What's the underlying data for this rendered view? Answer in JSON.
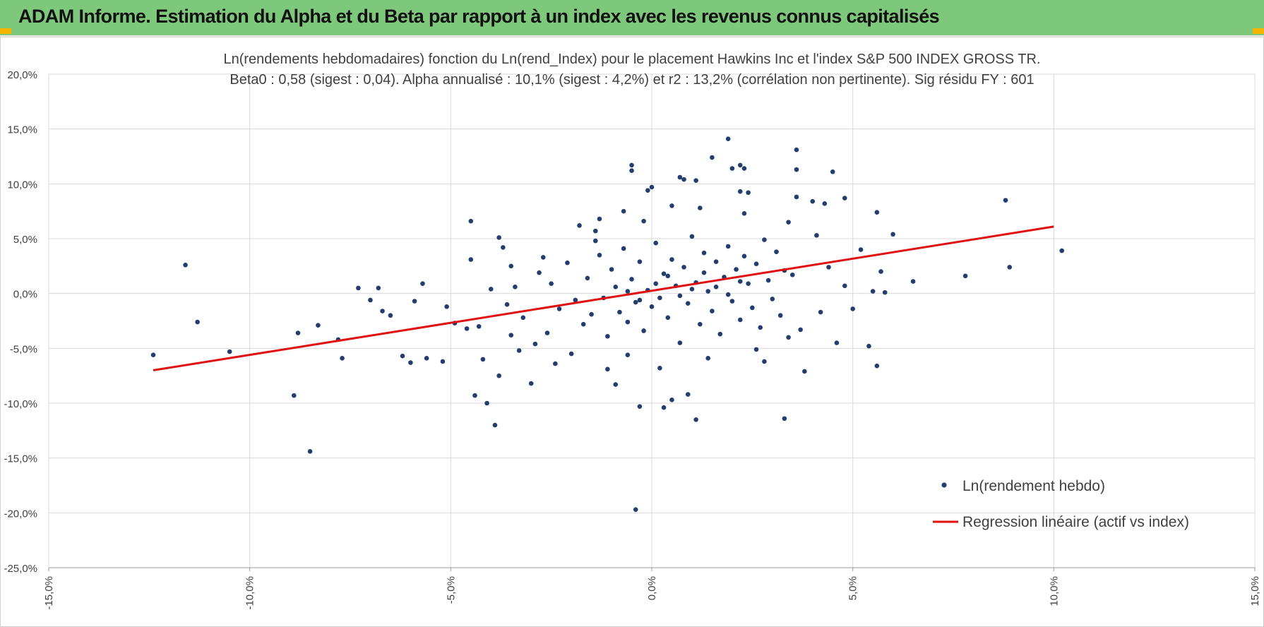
{
  "banner": {
    "title": "ADAM Informe. Estimation du Alpha et du Beta par rapport à un index avec les revenus connus capitalisés"
  },
  "colors": {
    "banner_bg": "#7ec87c",
    "points": "#233e6e",
    "regression": "#e01010",
    "grid": "#d9d9d9",
    "text": "#404040"
  },
  "chart_data": {
    "type": "scatter",
    "title": "Ln(rendements hebdomadaires) fonction du Ln(rend_Index) pour le placement Hawkins Inc et l'index S&P 500 INDEX GROSS TR.",
    "subtitle": "Beta0 : 0,58 (sigest : 0,04). Alpha annualisé : 10,1% (sigest : 4,2%) et r2 : 13,2% (corrélation non pertinente). Sig résidu FY : 601",
    "xlabel": "",
    "ylabel": "",
    "xlim": [
      -15,
      15
    ],
    "ylim": [
      -25,
      20
    ],
    "x_ticks": [
      "-15,0%",
      "-10,0%",
      "-5,0%",
      "0,0%",
      "5,0%",
      "10,0%",
      "15,0%"
    ],
    "y_ticks": [
      "20,0%",
      "15,0%",
      "10,0%",
      "5,0%",
      "0,0%",
      "-5,0%",
      "-10,0%",
      "-15,0%",
      "-20,0%",
      "-25,0%"
    ],
    "grid": true,
    "legend_position": "bottom-right",
    "series": [
      {
        "name": "Ln(rendement hebdo)",
        "kind": "scatter",
        "points": [
          [
            -12.4,
            -5.6
          ],
          [
            -11.6,
            2.6
          ],
          [
            -11.3,
            -2.6
          ],
          [
            -10.5,
            -5.3
          ],
          [
            -8.9,
            -9.3
          ],
          [
            -8.8,
            -3.6
          ],
          [
            -8.5,
            -14.4
          ],
          [
            -8.3,
            -2.9
          ],
          [
            -7.8,
            -4.2
          ],
          [
            -7.7,
            -5.9
          ],
          [
            -7.3,
            0.5
          ],
          [
            -7.0,
            -0.6
          ],
          [
            -6.8,
            0.5
          ],
          [
            -6.7,
            -1.6
          ],
          [
            -6.5,
            -2.0
          ],
          [
            -6.2,
            -5.7
          ],
          [
            -6.0,
            -6.3
          ],
          [
            -5.9,
            -0.7
          ],
          [
            -5.7,
            0.9
          ],
          [
            -5.6,
            -5.9
          ],
          [
            -5.2,
            -6.2
          ],
          [
            -5.1,
            -1.2
          ],
          [
            -4.9,
            -2.7
          ],
          [
            -4.6,
            -3.2
          ],
          [
            -4.5,
            6.6
          ],
          [
            -4.5,
            3.1
          ],
          [
            -4.4,
            -9.3
          ],
          [
            -4.3,
            -3.0
          ],
          [
            -4.2,
            -6.0
          ],
          [
            -4.1,
            -10.0
          ],
          [
            -3.9,
            -12.0
          ],
          [
            -3.8,
            -7.5
          ],
          [
            -3.8,
            5.1
          ],
          [
            -3.7,
            4.2
          ],
          [
            -3.5,
            2.5
          ],
          [
            -3.0,
            -8.2
          ],
          [
            -2.0,
            -5.5
          ],
          [
            -1.8,
            6.2
          ],
          [
            -1.4,
            5.7
          ],
          [
            -1.3,
            6.8
          ],
          [
            -0.9,
            -8.3
          ],
          [
            -0.7,
            7.5
          ],
          [
            -0.6,
            -5.6
          ],
          [
            -0.5,
            11.7
          ],
          [
            -0.5,
            11.2
          ],
          [
            -0.4,
            -19.7
          ],
          [
            -0.3,
            -10.3
          ],
          [
            -0.1,
            9.4
          ],
          [
            0.0,
            9.7
          ],
          [
            0.3,
            -10.4
          ],
          [
            0.5,
            -9.7
          ],
          [
            0.5,
            8.0
          ],
          [
            0.7,
            10.6
          ],
          [
            0.8,
            10.4
          ],
          [
            0.9,
            -9.2
          ],
          [
            1.1,
            -11.5
          ],
          [
            1.1,
            10.3
          ],
          [
            1.5,
            12.4
          ],
          [
            1.9,
            14.1
          ],
          [
            2.0,
            11.4
          ],
          [
            2.2,
            11.7
          ],
          [
            2.2,
            9.3
          ],
          [
            2.3,
            11.4
          ],
          [
            2.4,
            9.2
          ],
          [
            2.8,
            -6.2
          ],
          [
            3.3,
            -11.4
          ],
          [
            3.6,
            13.1
          ],
          [
            3.6,
            11.3
          ],
          [
            3.6,
            8.8
          ],
          [
            3.8,
            -7.1
          ],
          [
            4.0,
            8.4
          ],
          [
            4.3,
            8.2
          ],
          [
            4.5,
            11.1
          ],
          [
            4.6,
            -4.5
          ],
          [
            4.8,
            0.7
          ],
          [
            4.8,
            8.7
          ],
          [
            5.0,
            -1.4
          ],
          [
            5.2,
            4.0
          ],
          [
            5.4,
            -4.8
          ],
          [
            5.5,
            0.2
          ],
          [
            5.6,
            -6.6
          ],
          [
            5.6,
            7.4
          ],
          [
            5.8,
            0.1
          ],
          [
            6.0,
            5.4
          ],
          [
            6.5,
            1.1
          ],
          [
            7.8,
            1.6
          ],
          [
            8.8,
            8.5
          ],
          [
            8.9,
            2.4
          ],
          [
            10.2,
            3.9
          ],
          [
            5.7,
            2.0
          ],
          [
            -3.4,
            0.6
          ],
          [
            -3.2,
            -2.2
          ],
          [
            -2.8,
            1.9
          ],
          [
            -2.6,
            -3.6
          ],
          [
            -2.5,
            0.9
          ],
          [
            -2.3,
            -1.4
          ],
          [
            -2.1,
            2.8
          ],
          [
            -1.9,
            -0.6
          ],
          [
            -1.7,
            -2.8
          ],
          [
            -1.6,
            1.4
          ],
          [
            -1.5,
            -1.9
          ],
          [
            -1.3,
            3.5
          ],
          [
            -1.2,
            -0.4
          ],
          [
            -1.1,
            -3.9
          ],
          [
            -1.0,
            2.2
          ],
          [
            -0.9,
            0.6
          ],
          [
            -0.8,
            -1.7
          ],
          [
            -0.7,
            4.1
          ],
          [
            -0.6,
            -2.6
          ],
          [
            -0.5,
            1.3
          ],
          [
            -0.4,
            -0.8
          ],
          [
            -0.3,
            2.9
          ],
          [
            -0.2,
            -3.4
          ],
          [
            -0.1,
            0.3
          ],
          [
            0.0,
            -1.2
          ],
          [
            0.1,
            4.6
          ],
          [
            0.2,
            -0.4
          ],
          [
            0.3,
            1.8
          ],
          [
            0.4,
            -2.2
          ],
          [
            0.5,
            3.1
          ],
          [
            0.6,
            0.7
          ],
          [
            0.7,
            -4.5
          ],
          [
            0.8,
            2.4
          ],
          [
            0.9,
            -0.9
          ],
          [
            1.0,
            5.2
          ],
          [
            1.1,
            1.0
          ],
          [
            1.2,
            -2.8
          ],
          [
            1.3,
            3.7
          ],
          [
            1.4,
            0.2
          ],
          [
            1.5,
            -1.6
          ],
          [
            1.6,
            2.9
          ],
          [
            1.7,
            -3.7
          ],
          [
            1.8,
            1.5
          ],
          [
            1.9,
            4.3
          ],
          [
            2.0,
            -0.7
          ],
          [
            2.1,
            2.2
          ],
          [
            2.2,
            -2.4
          ],
          [
            2.3,
            3.4
          ],
          [
            2.4,
            0.9
          ],
          [
            2.5,
            -1.3
          ],
          [
            2.6,
            2.7
          ],
          [
            2.7,
            -3.1
          ],
          [
            2.8,
            4.9
          ],
          [
            2.9,
            1.2
          ],
          [
            3.0,
            -0.5
          ],
          [
            3.1,
            3.8
          ],
          [
            3.2,
            -2.0
          ],
          [
            3.3,
            2.1
          ],
          [
            3.4,
            -4.0
          ],
          [
            3.5,
            1.7
          ],
          [
            -0.6,
            0.2
          ],
          [
            -0.3,
            -0.6
          ],
          [
            0.1,
            0.9
          ],
          [
            0.4,
            1.6
          ],
          [
            0.7,
            -0.2
          ],
          [
            1.0,
            0.4
          ],
          [
            1.3,
            1.9
          ],
          [
            1.6,
            0.6
          ],
          [
            1.9,
            -0.1
          ],
          [
            2.2,
            1.1
          ],
          [
            -2.9,
            -4.6
          ],
          [
            -3.6,
            -1.0
          ],
          [
            -4.0,
            0.4
          ],
          [
            -3.3,
            -5.2
          ],
          [
            -2.4,
            -6.4
          ],
          [
            -1.1,
            -6.9
          ],
          [
            0.2,
            -6.8
          ],
          [
            1.4,
            -5.9
          ],
          [
            2.6,
            -5.1
          ],
          [
            3.7,
            -3.3
          ],
          [
            4.2,
            -1.7
          ],
          [
            4.4,
            2.4
          ],
          [
            4.1,
            5.3
          ],
          [
            3.4,
            6.5
          ],
          [
            2.3,
            7.3
          ],
          [
            1.2,
            7.8
          ],
          [
            -0.2,
            6.6
          ],
          [
            -1.4,
            4.8
          ],
          [
            -2.7,
            3.3
          ],
          [
            -3.5,
            -3.8
          ]
        ]
      },
      {
        "name": "Regression linéaire (actif vs index)",
        "kind": "line",
        "points": [
          [
            -12.4,
            -7.0
          ],
          [
            10.0,
            6.1
          ]
        ]
      }
    ]
  }
}
